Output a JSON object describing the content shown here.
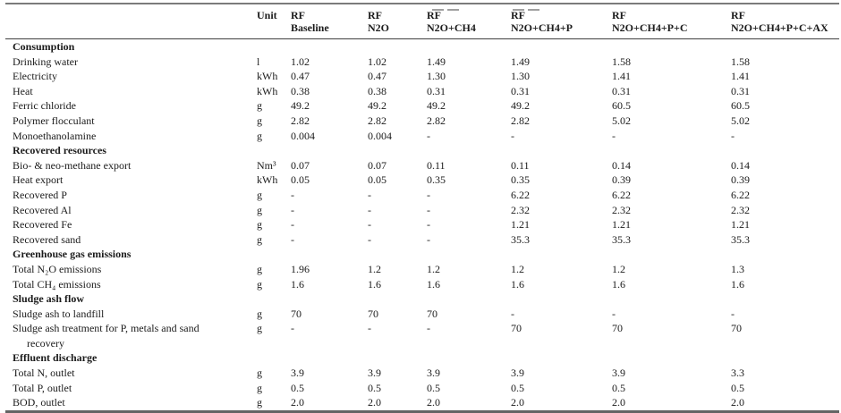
{
  "colors": {
    "background": "#ffffff",
    "text": "#1b1b1b",
    "rule_heavy_top": "#7b7b7b",
    "rule_heavy_bottom": "#646464",
    "rule_header": "#3f3f3f"
  },
  "table": {
    "unit_header": "Unit",
    "columns": [
      {
        "line1": "RF",
        "line2": "Baseline"
      },
      {
        "line1": "RF",
        "line2": "N2O"
      },
      {
        "line1": "RF",
        "line2": "N2O+CH4"
      },
      {
        "line1": "RF",
        "line2": "N2O+CH4+P"
      },
      {
        "line1": "RF",
        "line2": "N2O+CH4+P+C"
      },
      {
        "line1": "RF",
        "line2": "N2O+CH4+P+C+AX"
      }
    ],
    "sections": [
      {
        "title": "Consumption",
        "rows": [
          {
            "label": "Drinking water",
            "unit": "l",
            "values": [
              "1.02",
              "1.02",
              "1.49",
              "1.49",
              "1.58",
              "1.58"
            ]
          },
          {
            "label": "Electricity",
            "unit": "kWh",
            "values": [
              "0.47",
              "0.47",
              "1.30",
              "1.30",
              "1.41",
              "1.41"
            ]
          },
          {
            "label": "Heat",
            "unit": "kWh",
            "values": [
              "0.38",
              "0.38",
              "0.31",
              "0.31",
              "0.31",
              "0.31"
            ]
          },
          {
            "label": "Ferric chloride",
            "unit": "g",
            "values": [
              "49.2",
              "49.2",
              "49.2",
              "49.2",
              "60.5",
              "60.5"
            ]
          },
          {
            "label": "Polymer flocculant",
            "unit": "g",
            "values": [
              "2.82",
              "2.82",
              "2.82",
              "2.82",
              "5.02",
              "5.02"
            ]
          },
          {
            "label": "Monoethanolamine",
            "unit": "g",
            "values": [
              "0.004",
              "0.004",
              "-",
              "-",
              "-",
              "-"
            ]
          }
        ]
      },
      {
        "title": "Recovered resources",
        "rows": [
          {
            "label": "Bio- & neo-methane export",
            "unit": "Nm³",
            "values": [
              "0.07",
              "0.07",
              "0.11",
              "0.11",
              "0.14",
              "0.14"
            ]
          },
          {
            "label": "Heat export",
            "unit": "kWh",
            "values": [
              "0.05",
              "0.05",
              "0.35",
              "0.35",
              "0.39",
              "0.39"
            ]
          },
          {
            "label": "Recovered P",
            "unit": "g",
            "values": [
              "-",
              "-",
              "-",
              "6.22",
              "6.22",
              "6.22"
            ]
          },
          {
            "label": "Recovered Al",
            "unit": "g",
            "values": [
              "-",
              "-",
              "-",
              "2.32",
              "2.32",
              "2.32"
            ]
          },
          {
            "label": "Recovered Fe",
            "unit": "g",
            "values": [
              "-",
              "-",
              "-",
              "1.21",
              "1.21",
              "1.21"
            ]
          },
          {
            "label": "Recovered sand",
            "unit": "g",
            "values": [
              "-",
              "-",
              "-",
              "35.3",
              "35.3",
              "35.3"
            ]
          }
        ]
      },
      {
        "title": "Greenhouse gas emissions",
        "rows": [
          {
            "label": "Total N₂O emissions",
            "unit": "g",
            "values": [
              "1.96",
              "1.2",
              "1.2",
              "1.2",
              "1.2",
              "1.3"
            ]
          },
          {
            "label": "Total CH₄ emissions",
            "unit": "g",
            "values": [
              "1.6",
              "1.6",
              "1.6",
              "1.6",
              "1.6",
              "1.6"
            ]
          }
        ]
      },
      {
        "title": "Sludge ash flow",
        "rows": [
          {
            "label": "Sludge ash to landfill",
            "unit": "g",
            "values": [
              "70",
              "70",
              "70",
              "-",
              "-",
              "-"
            ]
          },
          {
            "label": "Sludge ash treatment for P, metals and sand",
            "label2": "recovery",
            "unit": "g",
            "values": [
              "-",
              "-",
              "-",
              "70",
              "70",
              "70"
            ]
          }
        ]
      },
      {
        "title": "Effluent discharge",
        "rows": [
          {
            "label": "Total N, outlet",
            "unit": "g",
            "values": [
              "3.9",
              "3.9",
              "3.9",
              "3.9",
              "3.9",
              "3.3"
            ]
          },
          {
            "label": "Total P, outlet",
            "unit": "g",
            "values": [
              "0.5",
              "0.5",
              "0.5",
              "0.5",
              "0.5",
              "0.5"
            ]
          },
          {
            "label": "BOD, outlet",
            "unit": "g",
            "values": [
              "2.0",
              "2.0",
              "2.0",
              "2.0",
              "2.0",
              "2.0"
            ]
          }
        ]
      }
    ]
  }
}
